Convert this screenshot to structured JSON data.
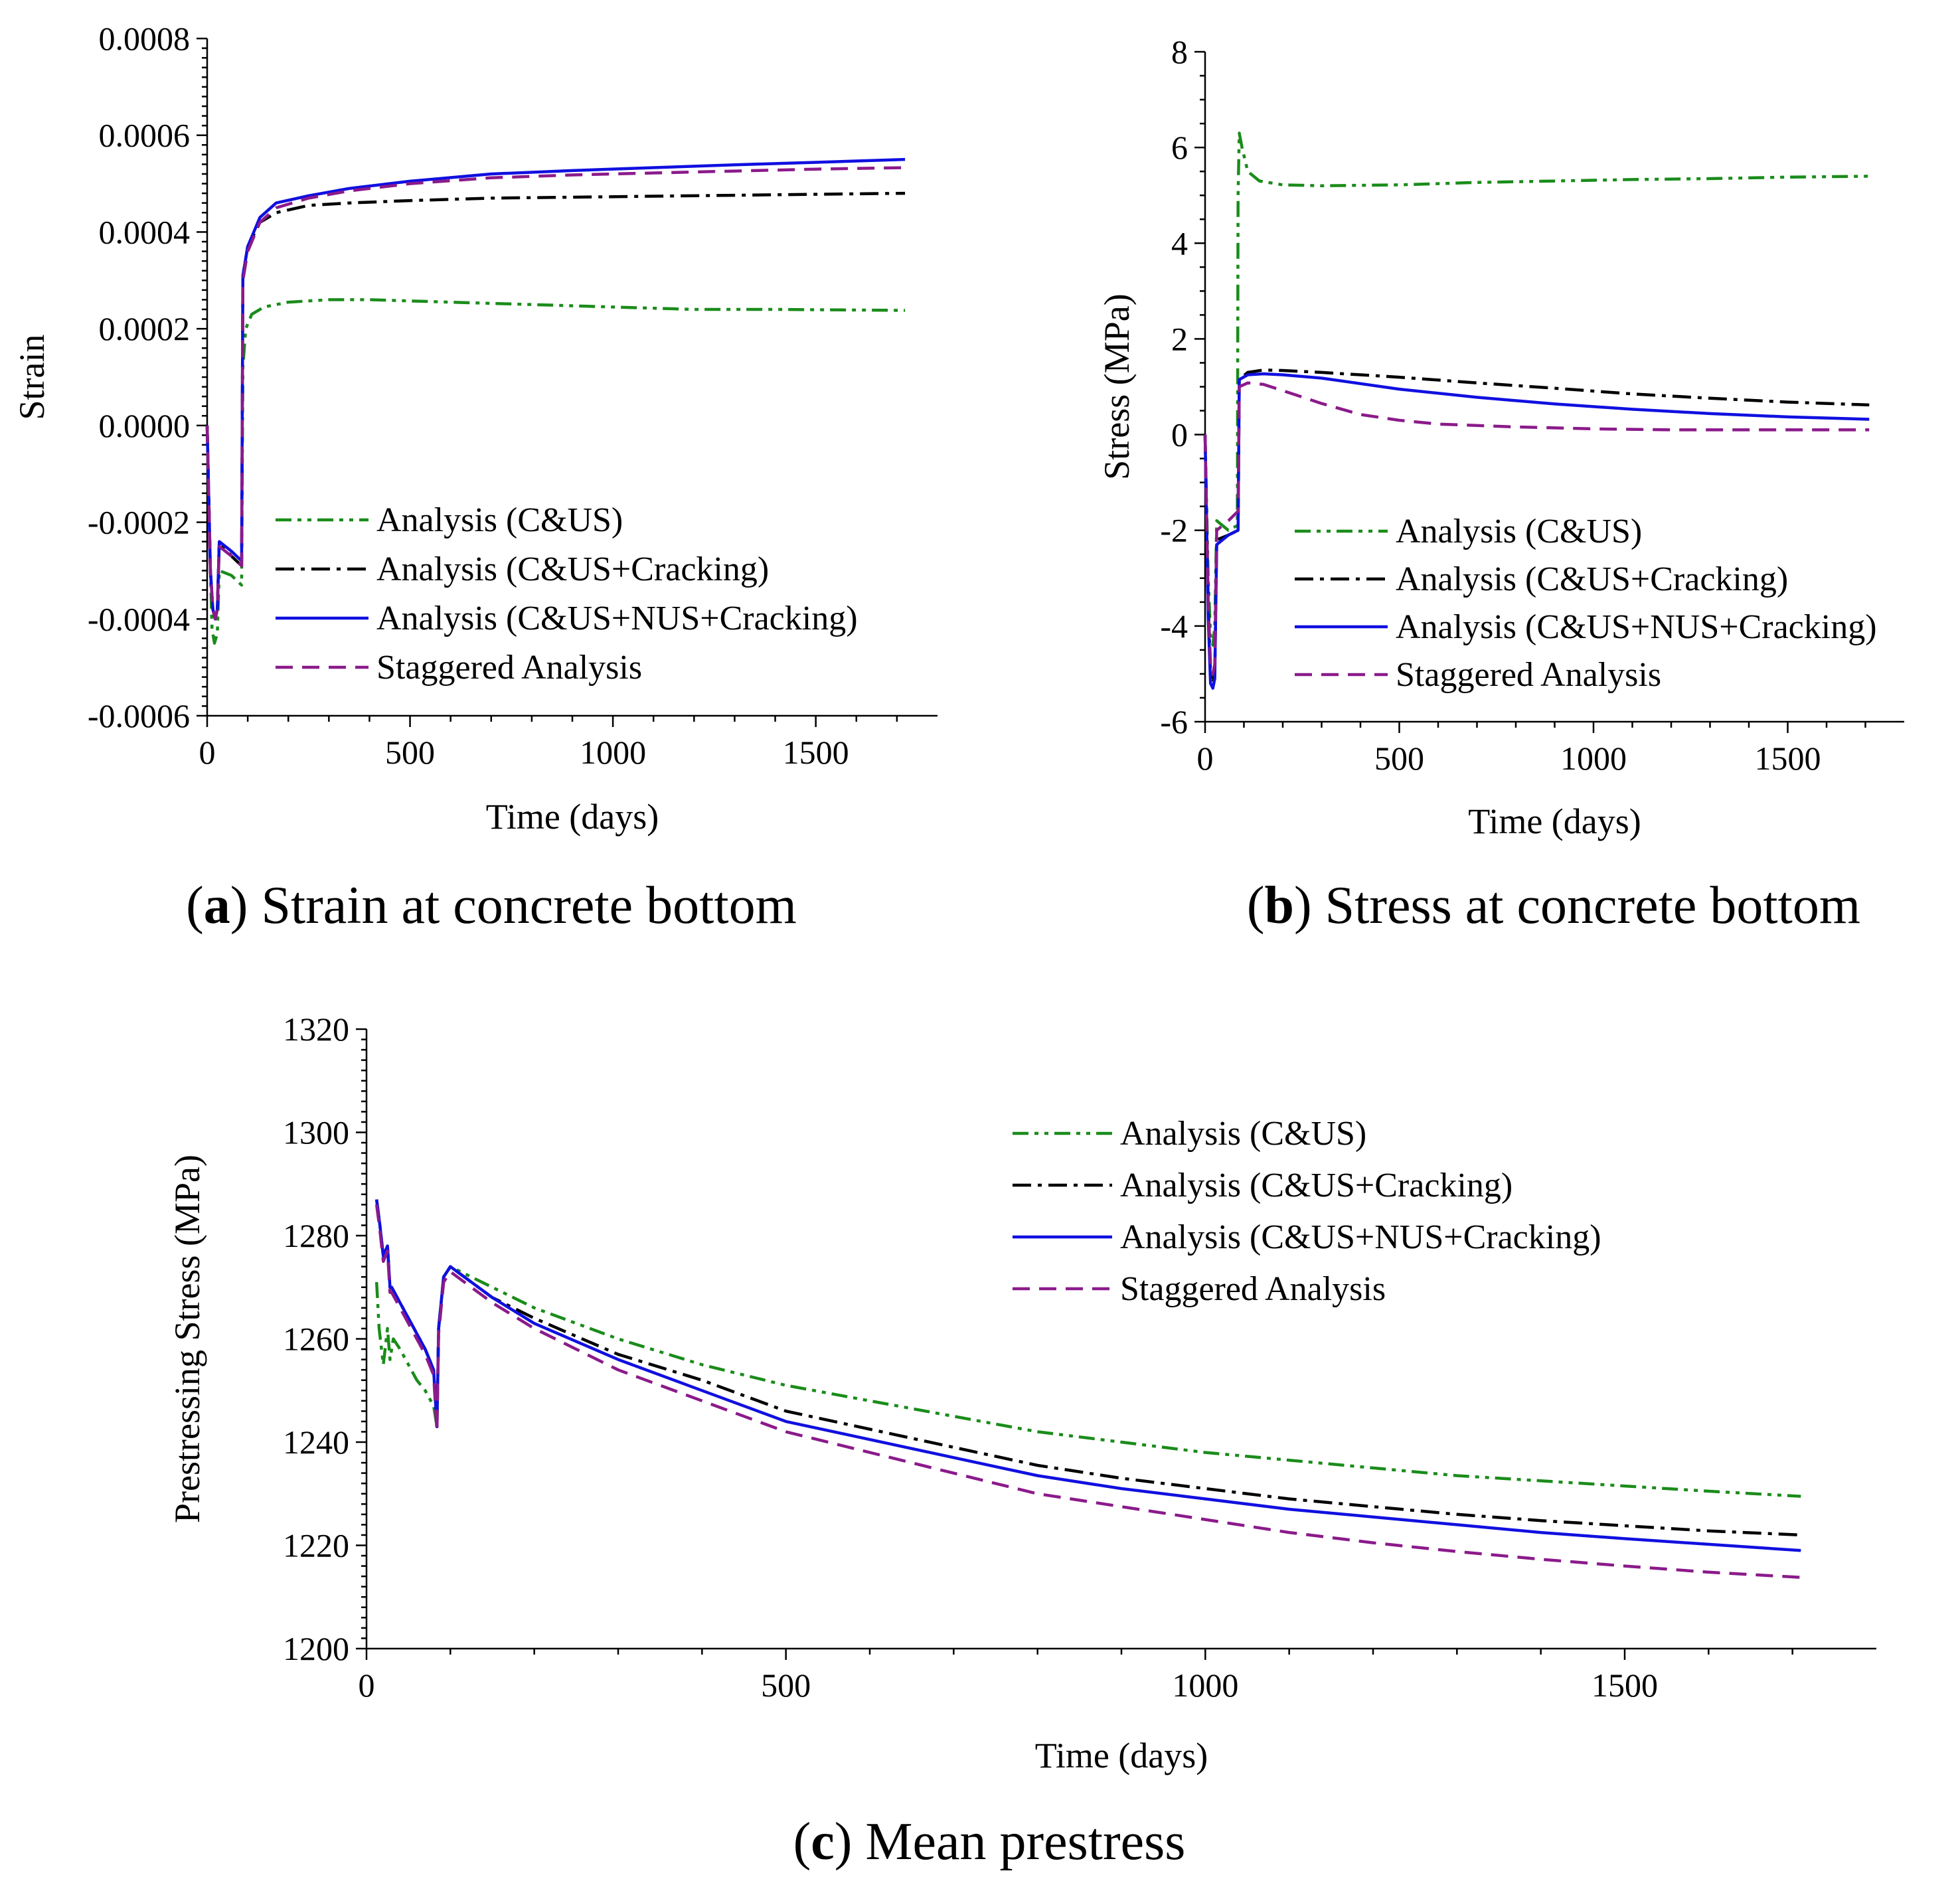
{
  "chart_data": [
    {
      "type": "line",
      "caption": {
        "letter": "a",
        "rest": ") Strain at concrete bottom"
      },
      "xlabel": "Time (days)",
      "ylabel": "Strain",
      "xlim": [
        0,
        1800
      ],
      "ylim": [
        -0.0006,
        0.0008
      ],
      "xticks": [
        0,
        500,
        1000,
        1500
      ],
      "xticklabels": [
        "0",
        "500",
        "1000",
        "1500"
      ],
      "yticks": [
        -0.0006,
        -0.0004,
        -0.0002,
        0.0,
        0.0002,
        0.0004,
        0.0006,
        0.0008
      ],
      "yticklabels": [
        "-0.0006",
        "-0.0004",
        "-0.0002",
        "0.0000",
        "0.0002",
        "0.0004",
        "0.0006",
        "0.0008"
      ],
      "legend_position": "lower-center",
      "series": [
        {
          "name": "Analysis (C&US)",
          "color": "#1a8c1a",
          "dash": "dashdotdot",
          "x": [
            0,
            8,
            12,
            18,
            25,
            30,
            60,
            85,
            88,
            95,
            110,
            140,
            200,
            300,
            400,
            600,
            800,
            1000,
            1200,
            1400,
            1720
          ],
          "y": [
            0.0,
            -0.0003,
            -0.00042,
            -0.00045,
            -0.00043,
            -0.0003,
            -0.00031,
            -0.00033,
            0.00012,
            0.0002,
            0.00023,
            0.000245,
            0.000255,
            0.00026,
            0.00026,
            0.000255,
            0.00025,
            0.000245,
            0.00024,
            0.00024,
            0.000238
          ]
        },
        {
          "name": "Analysis (C&US+Cracking)",
          "color": "#000000",
          "dash": "dashdot",
          "x": [
            0,
            8,
            14,
            20,
            25,
            30,
            60,
            85,
            88,
            100,
            130,
            170,
            250,
            350,
            500,
            700,
            900,
            1100,
            1300,
            1500,
            1720
          ],
          "y": [
            0.0,
            -0.0003,
            -0.00038,
            -0.0004,
            -0.00038,
            -0.00024,
            -0.00027,
            -0.00029,
            0.00031,
            0.00037,
            0.00042,
            0.00044,
            0.000455,
            0.00046,
            0.000465,
            0.00047,
            0.000472,
            0.000474,
            0.000476,
            0.000478,
            0.00048
          ]
        },
        {
          "name": "Analysis (C&US+NUS+Cracking)",
          "color": "#1010e0",
          "dash": "solid",
          "x": [
            0,
            8,
            14,
            20,
            25,
            30,
            60,
            85,
            88,
            100,
            130,
            170,
            250,
            350,
            500,
            700,
            900,
            1100,
            1300,
            1500,
            1720
          ],
          "y": [
            0.0,
            -0.0003,
            -0.00038,
            -0.0004,
            -0.00038,
            -0.00024,
            -0.00026,
            -0.00028,
            0.00031,
            0.00037,
            0.00043,
            0.00046,
            0.000475,
            0.00049,
            0.000505,
            0.00052,
            0.000527,
            0.000533,
            0.000539,
            0.000544,
            0.00055
          ]
        },
        {
          "name": "Staggered Analysis",
          "color": "#8b1a8b",
          "dash": "dashed",
          "x": [
            0,
            8,
            14,
            20,
            25,
            30,
            60,
            85,
            88,
            100,
            130,
            170,
            250,
            350,
            500,
            700,
            900,
            1100,
            1300,
            1500,
            1720
          ],
          "y": [
            0.0,
            -0.0003,
            -0.00038,
            -0.0004,
            -0.00038,
            -0.00025,
            -0.00027,
            -0.00029,
            0.0003,
            0.00036,
            0.00042,
            0.00045,
            0.00047,
            0.000485,
            0.0005,
            0.000512,
            0.000518,
            0.000522,
            0.000526,
            0.00053,
            0.000533
          ]
        }
      ]
    },
    {
      "type": "line",
      "caption": {
        "letter": "b",
        "rest": ") Stress at concrete bottom"
      },
      "xlabel": "Time (days)",
      "ylabel": "Stress (MPa)",
      "xlim": [
        0,
        1800
      ],
      "ylim": [
        -6,
        8
      ],
      "xticks": [
        0,
        500,
        1000,
        1500
      ],
      "xticklabels": [
        "0",
        "500",
        "1000",
        "1500"
      ],
      "yticks": [
        -6,
        -4,
        -2,
        0,
        2,
        4,
        6,
        8
      ],
      "yticklabels": [
        "-6",
        "-4",
        "-2",
        "0",
        "2",
        "4",
        "6",
        "8"
      ],
      "legend_position": "lower-center",
      "series": [
        {
          "name": "Analysis (C&US)",
          "color": "#1a8c1a",
          "dash": "dashdotdot",
          "x": [
            0,
            8,
            14,
            20,
            25,
            30,
            60,
            83,
            85,
            88,
            95,
            110,
            140,
            200,
            300,
            500,
            700,
            900,
            1100,
            1300,
            1500,
            1710
          ],
          "y": [
            0.0,
            -3.0,
            -4.2,
            -4.4,
            -4.0,
            -1.8,
            -2.0,
            -1.9,
            5.0,
            6.3,
            6.0,
            5.5,
            5.3,
            5.22,
            5.2,
            5.22,
            5.27,
            5.3,
            5.33,
            5.35,
            5.38,
            5.4
          ]
        },
        {
          "name": "Analysis (C&US+Cracking)",
          "color": "#000000",
          "dash": "dashdot",
          "x": [
            0,
            8,
            14,
            20,
            25,
            30,
            60,
            85,
            88,
            110,
            150,
            200,
            300,
            500,
            700,
            900,
            1100,
            1300,
            1500,
            1710
          ],
          "y": [
            0.0,
            -3.5,
            -5.0,
            -5.2,
            -5.0,
            -2.2,
            -2.1,
            -2.0,
            1.15,
            1.3,
            1.35,
            1.34,
            1.3,
            1.2,
            1.08,
            0.97,
            0.85,
            0.76,
            0.68,
            0.62
          ]
        },
        {
          "name": "Analysis (C&US+NUS+Cracking)",
          "color": "#1010e0",
          "dash": "solid",
          "x": [
            0,
            8,
            14,
            20,
            25,
            30,
            60,
            85,
            88,
            110,
            150,
            200,
            300,
            500,
            700,
            900,
            1100,
            1300,
            1500,
            1710
          ],
          "y": [
            0.0,
            -3.8,
            -5.2,
            -5.3,
            -5.1,
            -2.3,
            -2.1,
            -2.0,
            1.15,
            1.25,
            1.27,
            1.25,
            1.18,
            0.95,
            0.78,
            0.64,
            0.53,
            0.44,
            0.37,
            0.32
          ]
        },
        {
          "name": "Staggered Analysis",
          "color": "#8b1a8b",
          "dash": "dashed",
          "x": [
            0,
            8,
            14,
            20,
            25,
            30,
            60,
            85,
            88,
            110,
            150,
            200,
            300,
            400,
            500,
            600,
            800,
            1000,
            1200,
            1500,
            1710
          ],
          "y": [
            0.0,
            -3.5,
            -4.8,
            -5.0,
            -4.8,
            -2.0,
            -1.8,
            -1.6,
            1.0,
            1.08,
            1.05,
            0.92,
            0.65,
            0.42,
            0.3,
            0.22,
            0.16,
            0.12,
            0.1,
            0.1,
            0.1
          ]
        }
      ]
    },
    {
      "type": "line",
      "caption": {
        "letter": "c",
        "rest": ") Mean prestress"
      },
      "xlabel": "Time (days)",
      "ylabel": "Prestressing Stress (MPa)",
      "xlim": [
        0,
        1800
      ],
      "ylim": [
        1200,
        1320
      ],
      "xticks": [
        0,
        500,
        1000,
        1500
      ],
      "xticklabels": [
        "0",
        "500",
        "1000",
        "1500"
      ],
      "yticks": [
        1200,
        1220,
        1240,
        1260,
        1280,
        1300,
        1320
      ],
      "yticklabels": [
        "1200",
        "1220",
        "1240",
        "1260",
        "1280",
        "1300",
        "1320"
      ],
      "legend_position": "top-right",
      "series": [
        {
          "name": "Analysis (C&US)",
          "color": "#1a8c1a",
          "dash": "dashdotdot",
          "x": [
            12,
            15,
            20,
            25,
            28,
            32,
            40,
            50,
            60,
            70,
            80,
            84,
            86,
            92,
            100,
            150,
            200,
            300,
            400,
            500,
            700,
            800,
            900,
            1000,
            1100,
            1200,
            1300,
            1400,
            1500,
            1600,
            1710
          ],
          "y": [
            1271,
            1262,
            1255,
            1262,
            1256,
            1260,
            1258,
            1255,
            1252,
            1250,
            1247,
            1243,
            1262,
            1272,
            1274,
            1270,
            1266,
            1260,
            1255,
            1251,
            1245,
            1242,
            1240,
            1238,
            1236.5,
            1235,
            1233.5,
            1232.5,
            1231.5,
            1230.5,
            1229.5
          ]
        },
        {
          "name": "Analysis (C&US+Cracking)",
          "color": "#000000",
          "dash": "dashdot",
          "x": [
            12,
            16,
            20,
            25,
            28,
            30,
            40,
            50,
            60,
            70,
            80,
            84,
            86,
            92,
            100,
            150,
            200,
            300,
            400,
            500,
            700,
            800,
            900,
            1000,
            1100,
            1200,
            1300,
            1400,
            1500,
            1600,
            1710
          ],
          "y": [
            1287,
            1282,
            1276,
            1278,
            1270,
            1270,
            1267,
            1264,
            1261,
            1258,
            1254,
            1243,
            1262,
            1272,
            1274,
            1268,
            1264,
            1257,
            1252,
            1246,
            1239,
            1235.5,
            1233,
            1231,
            1229,
            1227.5,
            1226,
            1224.8,
            1223.8,
            1222.8,
            1222
          ]
        },
        {
          "name": "Analysis (C&US+NUS+Cracking)",
          "color": "#1010e0",
          "dash": "solid",
          "x": [
            12,
            16,
            20,
            25,
            28,
            30,
            40,
            50,
            60,
            70,
            80,
            84,
            86,
            92,
            100,
            150,
            200,
            300,
            400,
            500,
            700,
            800,
            900,
            1000,
            1100,
            1200,
            1300,
            1400,
            1500,
            1600,
            1710
          ],
          "y": [
            1287,
            1282,
            1276,
            1278,
            1270,
            1270,
            1267,
            1264,
            1261,
            1258,
            1254,
            1243,
            1262,
            1272,
            1274,
            1268,
            1263,
            1256,
            1250,
            1244,
            1237,
            1233.5,
            1231,
            1229,
            1227,
            1225.5,
            1224,
            1222.5,
            1221.3,
            1220.2,
            1219
          ]
        },
        {
          "name": "Staggered Analysis",
          "color": "#8b1a8b",
          "dash": "dashed",
          "x": [
            12,
            16,
            20,
            25,
            28,
            30,
            40,
            50,
            60,
            70,
            80,
            84,
            86,
            92,
            100,
            150,
            200,
            300,
            400,
            500,
            700,
            800,
            900,
            1000,
            1100,
            1200,
            1300,
            1400,
            1500,
            1600,
            1710
          ],
          "y": [
            1286,
            1281,
            1275,
            1277,
            1269,
            1269,
            1266,
            1263,
            1260,
            1257,
            1253,
            1242,
            1261,
            1271,
            1273,
            1267,
            1262,
            1254,
            1248,
            1242,
            1234,
            1230,
            1227.5,
            1225,
            1222.5,
            1220.5,
            1218.8,
            1217.3,
            1216,
            1214.8,
            1213.8
          ]
        }
      ]
    }
  ]
}
